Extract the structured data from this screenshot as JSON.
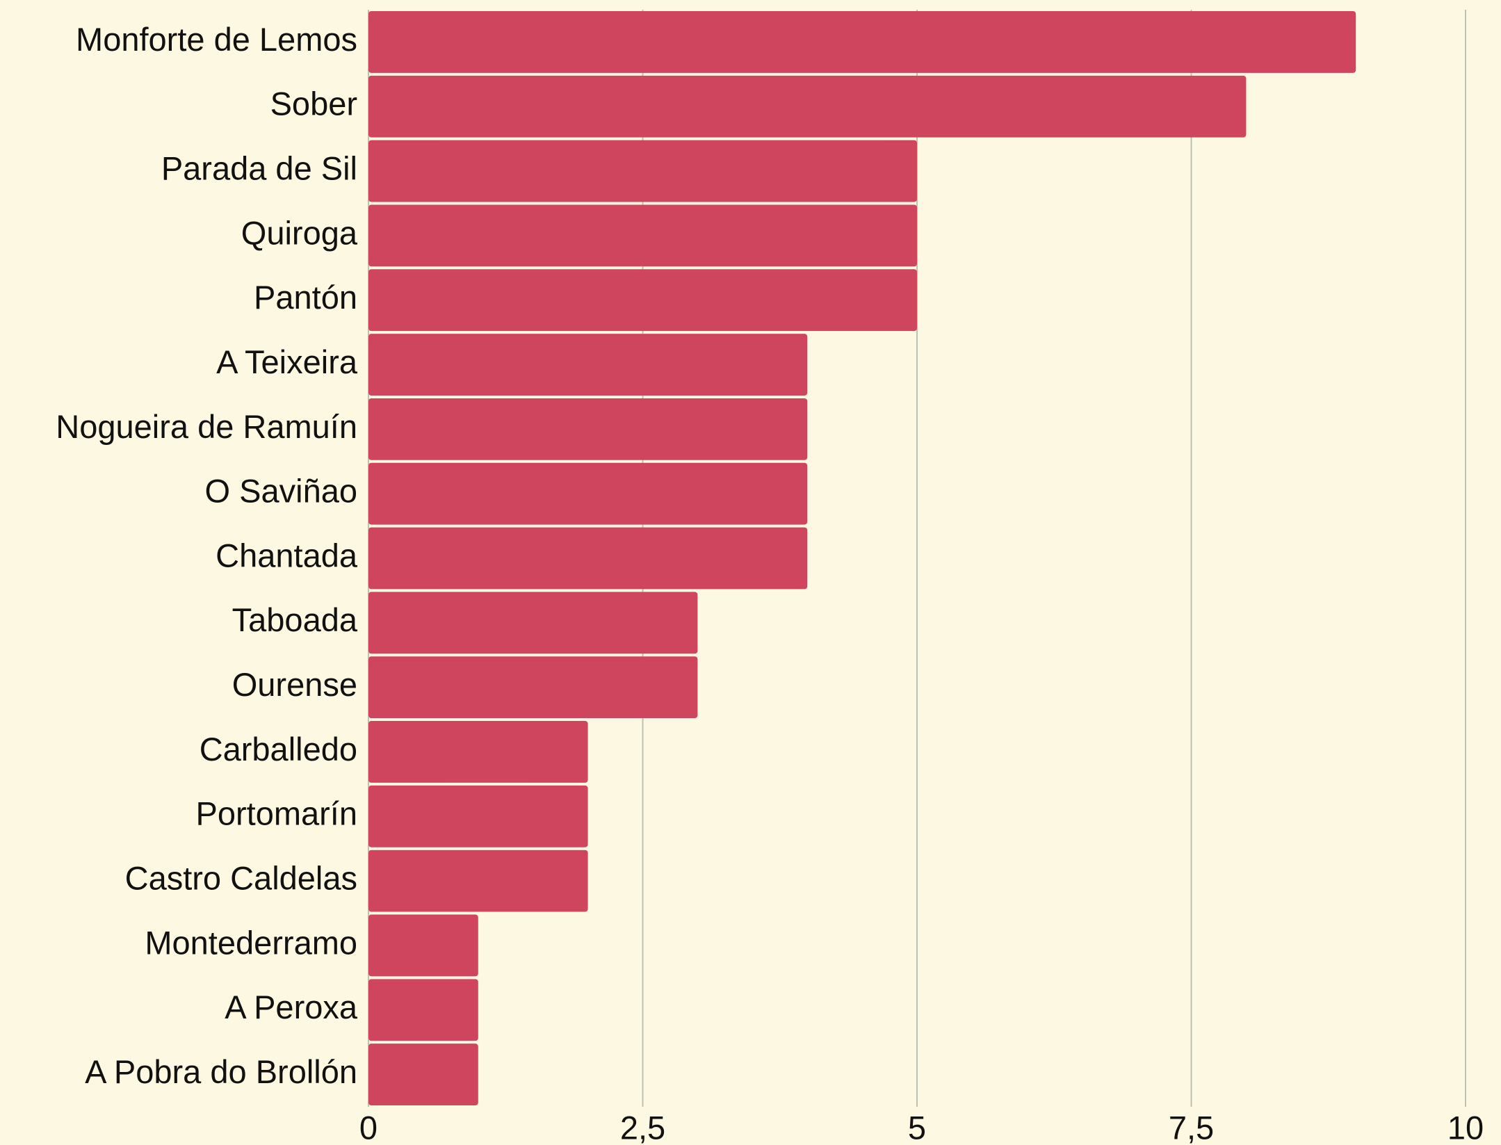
{
  "chart_data": {
    "type": "bar",
    "orientation": "horizontal",
    "categories": [
      "Monforte de Lemos",
      "Sober",
      "Parada de Sil",
      "Quiroga",
      "Pantón",
      "A Teixeira",
      "Nogueira de Ramuín",
      "O Saviñao",
      "Chantada",
      "Taboada",
      "Ourense",
      "Carballedo",
      "Portomarín",
      "Castro Caldelas",
      "Montederramo",
      "A Peroxa",
      "A Pobra do Brollón"
    ],
    "values": [
      9,
      8,
      5,
      5,
      5,
      4,
      4,
      4,
      4,
      3,
      3,
      2,
      2,
      2,
      1,
      1,
      1
    ],
    "color": "#d0455e",
    "xlim": [
      0,
      10
    ],
    "xticks": [
      0,
      {
        "value": 2.5,
        "label": "2,5"
      },
      5,
      {
        "value": 7.5,
        "label": "7,5"
      },
      10
    ],
    "grid": true
  }
}
